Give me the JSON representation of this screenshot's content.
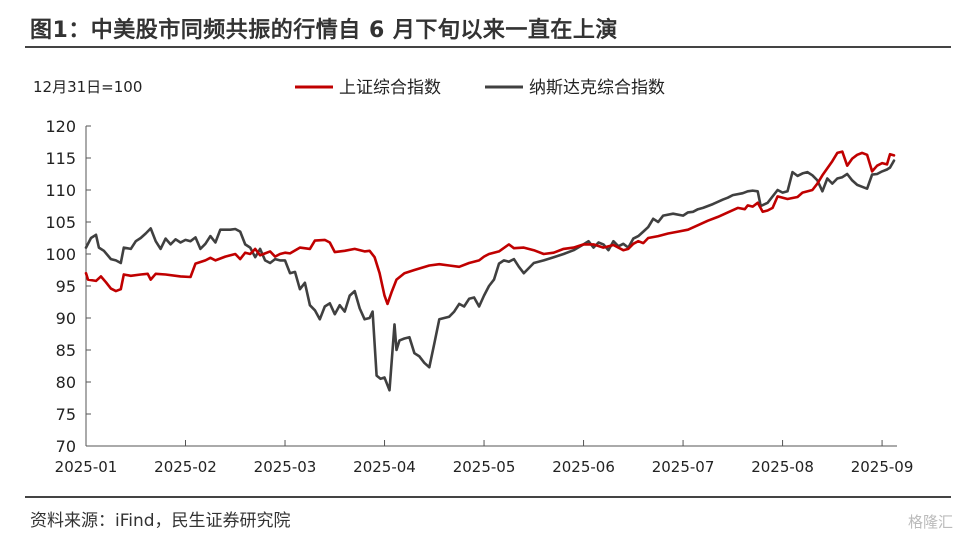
{
  "header": {
    "title": "图1：中美股市同频共振的行情自 6 月下旬以来一直在上演"
  },
  "footer": {
    "source": "资料来源：iFind，民生证券研究院",
    "watermark": "格隆汇"
  },
  "chart_data": {
    "type": "line",
    "title": "图1：中美股市同频共振的行情自 6 月下旬以来一直在上演",
    "ylabel": "12月31日=100",
    "xlabel": "",
    "ylim": [
      70,
      120
    ],
    "yticks": [
      70,
      75,
      80,
      85,
      90,
      95,
      100,
      105,
      110,
      115,
      120
    ],
    "xlim": [
      0,
      8.15
    ],
    "xticks": [
      {
        "pos": 0,
        "label": "2025-01"
      },
      {
        "pos": 1,
        "label": "2025-02"
      },
      {
        "pos": 2,
        "label": "2025-03"
      },
      {
        "pos": 3,
        "label": "2025-04"
      },
      {
        "pos": 4,
        "label": "2025-05"
      },
      {
        "pos": 5,
        "label": "2025-06"
      },
      {
        "pos": 6,
        "label": "2025-07"
      },
      {
        "pos": 7,
        "label": "2025-08"
      },
      {
        "pos": 8,
        "label": "2025-09"
      }
    ],
    "grid": false,
    "legend": "top",
    "series": [
      {
        "name": "上证综合指数",
        "color": "#c00000",
        "points": [
          [
            0.0,
            97.0
          ],
          [
            0.02,
            96.0
          ],
          [
            0.1,
            95.8
          ],
          [
            0.15,
            96.5
          ],
          [
            0.2,
            95.6
          ],
          [
            0.25,
            94.6
          ],
          [
            0.3,
            94.2
          ],
          [
            0.35,
            94.5
          ],
          [
            0.38,
            96.8
          ],
          [
            0.45,
            96.6
          ],
          [
            0.55,
            96.8
          ],
          [
            0.62,
            96.9
          ],
          [
            0.65,
            96.0
          ],
          [
            0.7,
            96.9
          ],
          [
            0.8,
            96.8
          ],
          [
            0.95,
            96.5
          ],
          [
            1.05,
            96.4
          ],
          [
            1.1,
            98.5
          ],
          [
            1.2,
            99.0
          ],
          [
            1.25,
            99.4
          ],
          [
            1.3,
            99.0
          ],
          [
            1.4,
            99.6
          ],
          [
            1.5,
            100.0
          ],
          [
            1.55,
            99.2
          ],
          [
            1.6,
            100.2
          ],
          [
            1.65,
            100.0
          ],
          [
            1.7,
            100.8
          ],
          [
            1.75,
            99.8
          ],
          [
            1.8,
            100.1
          ],
          [
            1.85,
            100.4
          ],
          [
            1.9,
            99.6
          ],
          [
            1.95,
            100.0
          ],
          [
            2.0,
            100.2
          ],
          [
            2.05,
            100.1
          ],
          [
            2.15,
            101.0
          ],
          [
            2.25,
            100.8
          ],
          [
            2.3,
            102.1
          ],
          [
            2.4,
            102.2
          ],
          [
            2.45,
            101.8
          ],
          [
            2.5,
            100.3
          ],
          [
            2.6,
            100.5
          ],
          [
            2.7,
            100.8
          ],
          [
            2.8,
            100.4
          ],
          [
            2.85,
            100.5
          ],
          [
            2.9,
            99.5
          ],
          [
            2.95,
            97.0
          ],
          [
            3.0,
            93.5
          ],
          [
            3.03,
            92.2
          ],
          [
            3.07,
            94.0
          ],
          [
            3.12,
            96.0
          ],
          [
            3.2,
            97.0
          ],
          [
            3.3,
            97.5
          ],
          [
            3.45,
            98.2
          ],
          [
            3.55,
            98.4
          ],
          [
            3.65,
            98.2
          ],
          [
            3.75,
            98.0
          ],
          [
            3.85,
            98.6
          ],
          [
            3.95,
            99.0
          ],
          [
            4.0,
            99.6
          ],
          [
            4.05,
            100.0
          ],
          [
            4.15,
            100.4
          ],
          [
            4.25,
            101.5
          ],
          [
            4.3,
            100.9
          ],
          [
            4.4,
            101.0
          ],
          [
            4.5,
            100.6
          ],
          [
            4.6,
            100.0
          ],
          [
            4.7,
            100.2
          ],
          [
            4.8,
            100.8
          ],
          [
            4.9,
            101.0
          ],
          [
            5.0,
            101.5
          ],
          [
            5.1,
            101.5
          ],
          [
            5.2,
            101.0
          ],
          [
            5.3,
            101.4
          ],
          [
            5.4,
            100.6
          ],
          [
            5.45,
            100.8
          ],
          [
            5.5,
            101.6
          ],
          [
            5.55,
            102.0
          ],
          [
            5.6,
            101.7
          ],
          [
            5.65,
            102.5
          ],
          [
            5.75,
            102.8
          ],
          [
            5.85,
            103.2
          ],
          [
            5.95,
            103.5
          ],
          [
            6.05,
            103.8
          ],
          [
            6.15,
            104.5
          ],
          [
            6.25,
            105.2
          ],
          [
            6.35,
            105.8
          ],
          [
            6.45,
            106.5
          ],
          [
            6.55,
            107.2
          ],
          [
            6.62,
            107.0
          ],
          [
            6.65,
            107.6
          ],
          [
            6.7,
            107.4
          ],
          [
            6.75,
            108.0
          ],
          [
            6.8,
            106.6
          ],
          [
            6.85,
            106.8
          ],
          [
            6.9,
            107.2
          ],
          [
            6.95,
            109.0
          ],
          [
            7.05,
            108.6
          ],
          [
            7.15,
            108.9
          ],
          [
            7.2,
            109.6
          ],
          [
            7.3,
            110.0
          ],
          [
            7.35,
            111.0
          ],
          [
            7.4,
            112.3
          ],
          [
            7.5,
            114.5
          ],
          [
            7.55,
            115.8
          ],
          [
            7.6,
            116.0
          ],
          [
            7.65,
            113.8
          ],
          [
            7.7,
            114.9
          ],
          [
            7.75,
            115.5
          ],
          [
            7.8,
            115.8
          ],
          [
            7.85,
            115.5
          ],
          [
            7.9,
            112.9
          ],
          [
            7.95,
            113.8
          ],
          [
            8.0,
            114.2
          ],
          [
            8.05,
            114.0
          ],
          [
            8.08,
            115.6
          ],
          [
            8.12,
            115.4
          ]
        ]
      },
      {
        "name": "纳斯达克综合指数",
        "color": "#404040",
        "points": [
          [
            0.0,
            101.0
          ],
          [
            0.05,
            102.5
          ],
          [
            0.1,
            103.0
          ],
          [
            0.13,
            101.0
          ],
          [
            0.18,
            100.5
          ],
          [
            0.25,
            99.2
          ],
          [
            0.3,
            99.0
          ],
          [
            0.35,
            98.6
          ],
          [
            0.38,
            101.0
          ],
          [
            0.45,
            100.8
          ],
          [
            0.5,
            102.0
          ],
          [
            0.55,
            102.5
          ],
          [
            0.6,
            103.2
          ],
          [
            0.65,
            104.0
          ],
          [
            0.7,
            102.0
          ],
          [
            0.75,
            100.8
          ],
          [
            0.8,
            102.4
          ],
          [
            0.85,
            101.5
          ],
          [
            0.9,
            102.3
          ],
          [
            0.95,
            101.8
          ],
          [
            1.0,
            102.2
          ],
          [
            1.05,
            102.0
          ],
          [
            1.1,
            102.6
          ],
          [
            1.15,
            100.8
          ],
          [
            1.2,
            101.6
          ],
          [
            1.25,
            102.8
          ],
          [
            1.3,
            101.8
          ],
          [
            1.35,
            103.8
          ],
          [
            1.45,
            103.8
          ],
          [
            1.5,
            103.9
          ],
          [
            1.55,
            103.5
          ],
          [
            1.6,
            101.5
          ],
          [
            1.65,
            101.0
          ],
          [
            1.7,
            99.5
          ],
          [
            1.75,
            100.8
          ],
          [
            1.8,
            99.0
          ],
          [
            1.85,
            98.6
          ],
          [
            1.9,
            99.2
          ],
          [
            1.95,
            99.0
          ],
          [
            2.0,
            99.0
          ],
          [
            2.05,
            97.0
          ],
          [
            2.1,
            97.2
          ],
          [
            2.15,
            94.5
          ],
          [
            2.2,
            95.5
          ],
          [
            2.25,
            92.0
          ],
          [
            2.3,
            91.2
          ],
          [
            2.35,
            89.8
          ],
          [
            2.4,
            91.8
          ],
          [
            2.45,
            92.3
          ],
          [
            2.5,
            90.6
          ],
          [
            2.55,
            92.0
          ],
          [
            2.6,
            91.0
          ],
          [
            2.65,
            93.5
          ],
          [
            2.7,
            94.2
          ],
          [
            2.75,
            91.5
          ],
          [
            2.8,
            89.8
          ],
          [
            2.85,
            90.0
          ],
          [
            2.88,
            91.0
          ],
          [
            2.92,
            81.0
          ],
          [
            2.96,
            80.5
          ],
          [
            3.0,
            80.7
          ],
          [
            3.05,
            78.7
          ],
          [
            3.1,
            89.0
          ],
          [
            3.12,
            85.0
          ],
          [
            3.15,
            86.5
          ],
          [
            3.2,
            86.8
          ],
          [
            3.25,
            87.0
          ],
          [
            3.3,
            84.5
          ],
          [
            3.35,
            84.0
          ],
          [
            3.4,
            83.0
          ],
          [
            3.45,
            82.3
          ],
          [
            3.5,
            86.0
          ],
          [
            3.55,
            89.8
          ],
          [
            3.6,
            90.0
          ],
          [
            3.65,
            90.2
          ],
          [
            3.7,
            91.0
          ],
          [
            3.75,
            92.2
          ],
          [
            3.8,
            91.8
          ],
          [
            3.85,
            93.0
          ],
          [
            3.9,
            93.2
          ],
          [
            3.95,
            91.8
          ],
          [
            4.0,
            93.5
          ],
          [
            4.05,
            95.0
          ],
          [
            4.1,
            96.0
          ],
          [
            4.15,
            98.5
          ],
          [
            4.2,
            99.0
          ],
          [
            4.25,
            98.8
          ],
          [
            4.3,
            99.2
          ],
          [
            4.35,
            98.0
          ],
          [
            4.4,
            97.0
          ],
          [
            4.45,
            97.8
          ],
          [
            4.5,
            98.6
          ],
          [
            4.6,
            99.0
          ],
          [
            4.7,
            99.5
          ],
          [
            4.8,
            100.0
          ],
          [
            4.9,
            100.6
          ],
          [
            5.0,
            101.5
          ],
          [
            5.05,
            102.0
          ],
          [
            5.1,
            101.0
          ],
          [
            5.15,
            101.8
          ],
          [
            5.2,
            101.5
          ],
          [
            5.25,
            100.6
          ],
          [
            5.3,
            102.0
          ],
          [
            5.35,
            101.2
          ],
          [
            5.4,
            101.6
          ],
          [
            5.45,
            101.0
          ],
          [
            5.5,
            102.4
          ],
          [
            5.55,
            102.8
          ],
          [
            5.6,
            103.5
          ],
          [
            5.65,
            104.2
          ],
          [
            5.7,
            105.5
          ],
          [
            5.75,
            105.0
          ],
          [
            5.8,
            106.0
          ],
          [
            5.9,
            106.3
          ],
          [
            6.0,
            106.0
          ],
          [
            6.05,
            106.5
          ],
          [
            6.1,
            106.6
          ],
          [
            6.15,
            107.0
          ],
          [
            6.2,
            107.2
          ],
          [
            6.3,
            107.8
          ],
          [
            6.4,
            108.5
          ],
          [
            6.45,
            108.8
          ],
          [
            6.5,
            109.2
          ],
          [
            6.6,
            109.5
          ],
          [
            6.65,
            109.8
          ],
          [
            6.7,
            109.9
          ],
          [
            6.75,
            109.8
          ],
          [
            6.78,
            107.5
          ],
          [
            6.85,
            108.0
          ],
          [
            6.95,
            110.0
          ],
          [
            7.0,
            109.6
          ],
          [
            7.05,
            109.8
          ],
          [
            7.1,
            112.8
          ],
          [
            7.15,
            112.2
          ],
          [
            7.2,
            112.6
          ],
          [
            7.25,
            112.8
          ],
          [
            7.3,
            112.3
          ],
          [
            7.35,
            111.5
          ],
          [
            7.4,
            109.8
          ],
          [
            7.45,
            111.8
          ],
          [
            7.5,
            111.0
          ],
          [
            7.55,
            111.8
          ],
          [
            7.6,
            112.0
          ],
          [
            7.65,
            112.5
          ],
          [
            7.7,
            111.5
          ],
          [
            7.75,
            110.8
          ],
          [
            7.8,
            110.5
          ],
          [
            7.85,
            110.2
          ],
          [
            7.9,
            112.4
          ],
          [
            7.95,
            112.5
          ],
          [
            8.0,
            112.9
          ],
          [
            8.05,
            113.2
          ],
          [
            8.08,
            113.5
          ],
          [
            8.12,
            114.6
          ]
        ]
      }
    ]
  }
}
